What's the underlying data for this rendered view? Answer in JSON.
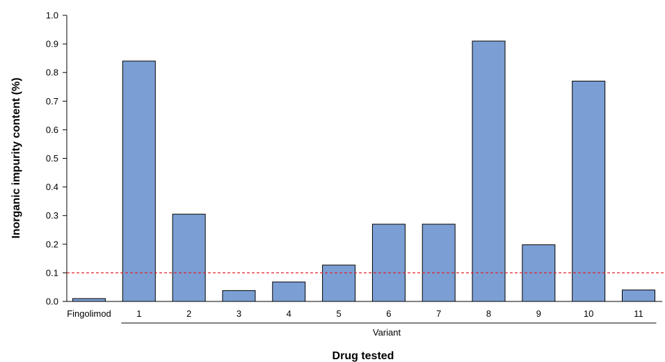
{
  "chart_data": {
    "type": "bar",
    "categories": [
      "Fingolimod",
      "1",
      "2",
      "3",
      "4",
      "5",
      "6",
      "7",
      "8",
      "9",
      "10",
      "11"
    ],
    "values": [
      0.01,
      0.84,
      0.305,
      0.038,
      0.068,
      0.127,
      0.27,
      0.27,
      0.91,
      0.198,
      0.77,
      0.04
    ],
    "group_label": "Variant",
    "group_categories": [
      "1",
      "2",
      "3",
      "4",
      "5",
      "6",
      "7",
      "8",
      "9",
      "10",
      "11"
    ],
    "xlabel": "Drug tested",
    "ylabel": "Inorganic impurity content (%)",
    "ylim": [
      0,
      1.0
    ],
    "yticks": [
      "0.0",
      "0.1",
      "0.2",
      "0.3",
      "0.4",
      "0.5",
      "0.6",
      "0.7",
      "0.8",
      "0.9",
      "1.0"
    ],
    "reference_line": {
      "value": 0.1,
      "style": "dashed",
      "color": "#e0202a"
    },
    "bar_color": "#7b9fd4",
    "bar_edge_color": "#000000",
    "grid": false
  }
}
